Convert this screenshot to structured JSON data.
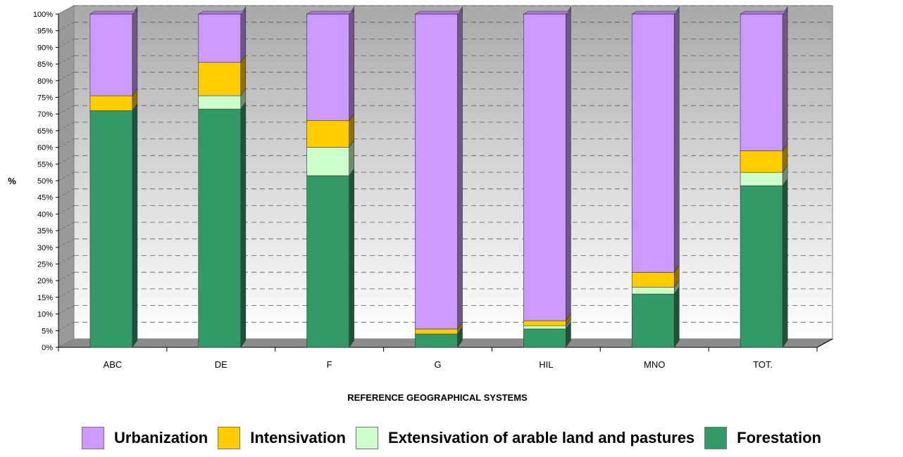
{
  "chart_data": {
    "type": "bar",
    "stacked": true,
    "three_d": true,
    "categories": [
      "ABC",
      "DE",
      "F",
      "G",
      "HIL",
      "MNO",
      "TOT."
    ],
    "series": [
      {
        "name": "Forestation",
        "color": "#339966",
        "values": [
          71,
          71.5,
          51.5,
          4,
          5.5,
          16,
          48.5
        ]
      },
      {
        "name": "Extensivation of arable land and pastures",
        "color": "#CCFFCC",
        "values": [
          0,
          4,
          8.5,
          0,
          1,
          2,
          4
        ]
      },
      {
        "name": "Intensivation",
        "color": "#FFCC00",
        "values": [
          4.5,
          10,
          8,
          1.5,
          1.5,
          4.5,
          6.5
        ]
      },
      {
        "name": "Urbanization",
        "color": "#CC99FF",
        "values": [
          24.5,
          14.5,
          32,
          94.5,
          92,
          77.5,
          41
        ]
      }
    ],
    "ylim": [
      0,
      100
    ],
    "yticks": [
      "0%",
      "5%",
      "10%",
      "15%",
      "20%",
      "25%",
      "30%",
      "35%",
      "40%",
      "45%",
      "50%",
      "55%",
      "60%",
      "65%",
      "70%",
      "75%",
      "80%",
      "85%",
      "90%",
      "95%",
      "100%"
    ],
    "ylabel": "%",
    "xlabel": "REFERENCE GEOGRAPHICAL SYSTEMS",
    "grid": true,
    "legend_position": "bottom",
    "legend_order": [
      "Urbanization",
      "Intensivation",
      "Extensivation of arable land and pastures",
      "Forestation"
    ]
  }
}
